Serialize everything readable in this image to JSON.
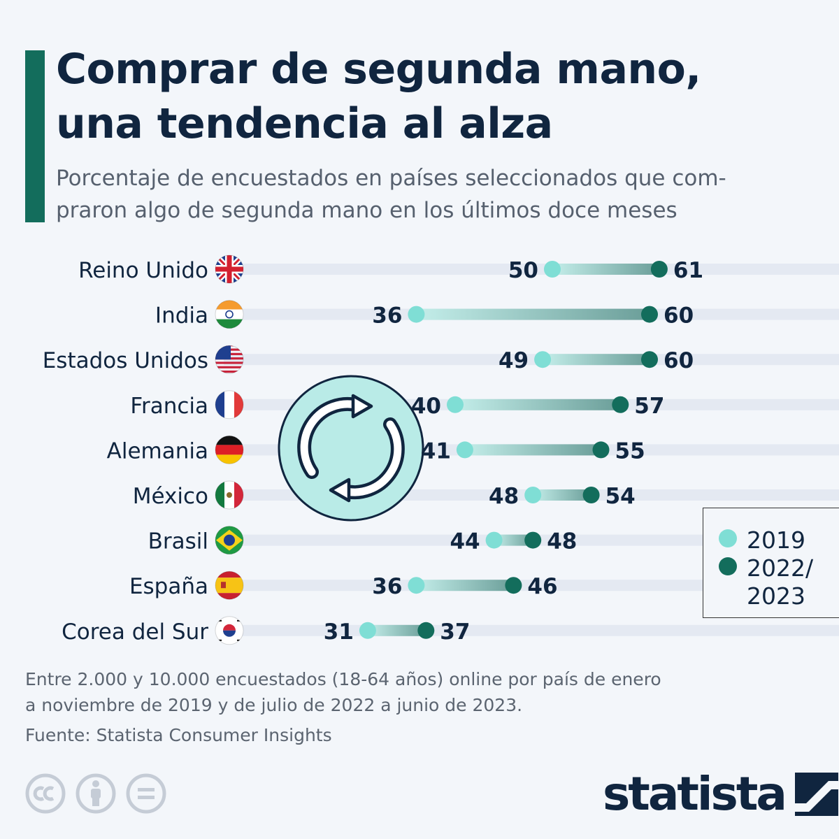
{
  "header": {
    "title_line1": "Comprar de segunda mano,",
    "title_line2": "una tendencia al alza",
    "subtitle_line1": "Porcentaje de encuestados en países seleccionados que com-",
    "subtitle_line2": "praron algo de segunda mano en los últimos doce meses"
  },
  "chart_data": {
    "type": "dumbbell",
    "title": "Comprar de segunda mano, una tendencia al alza",
    "xlabel": "",
    "ylabel": "",
    "unit": "% de encuestados",
    "categories": [
      "Reino Unido",
      "India",
      "Estados Unidos",
      "Francia",
      "Alemania",
      "México",
      "Brasil",
      "España",
      "Corea del Sur"
    ],
    "series": [
      {
        "name": "2019",
        "values": [
          50,
          36,
          49,
          40,
          41,
          48,
          44,
          36,
          31
        ]
      },
      {
        "name": "2022/2023",
        "values": [
          61,
          60,
          60,
          57,
          55,
          54,
          48,
          46,
          37
        ]
      }
    ],
    "legend_position": "right"
  },
  "flags": [
    "uk-flag-icon",
    "india-flag-icon",
    "usa-flag-icon",
    "france-flag-icon",
    "germany-flag-icon",
    "mexico-flag-icon",
    "brazil-flag-icon",
    "spain-flag-icon",
    "south-korea-flag-icon"
  ],
  "decorative_icon": "recycle-arrows-icon",
  "legend": {
    "item_2019": "2019",
    "item_2022_line1": "2022/",
    "item_2022_line2": "2023"
  },
  "colors": {
    "dot_2019": "#7fded5",
    "dot_2022": "#136d5c",
    "accent": "#136d5c",
    "text_dark": "#10253f",
    "row_band": "#e4e9f2",
    "icon_fill": "#b9ebe7"
  },
  "footer": {
    "note_line1": "Entre 2.000 y 10.000 encuestados (18-64 años) online por país de enero",
    "note_line2": "a noviembre de 2019 y de julio de 2022 a junio de 2023.",
    "source": "Fuente: Statista Consumer Insights",
    "brand": "statista",
    "license_icons": [
      "cc-icon",
      "attribution-icon",
      "no-derivatives-icon"
    ]
  }
}
